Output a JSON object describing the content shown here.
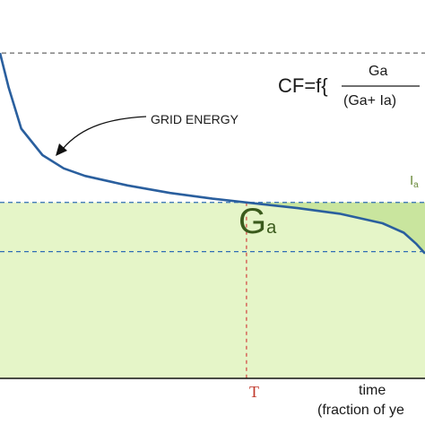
{
  "chart_data": {
    "type": "area",
    "title": "",
    "xlabel_line1": "time",
    "xlabel_line2": "(fraction of ye",
    "ylabel": "",
    "xlim": [
      0,
      1
    ],
    "ylim": [
      0,
      1
    ],
    "grid": false,
    "curve": {
      "name": "",
      "x": [
        0,
        0.02,
        0.05,
        0.1,
        0.15,
        0.2,
        0.3,
        0.4,
        0.5,
        0.58,
        0.7,
        0.8,
        0.9,
        0.95,
        0.98,
        1.0
      ],
      "y": [
        0.86,
        0.77,
        0.66,
        0.59,
        0.555,
        0.535,
        0.51,
        0.49,
        0.475,
        0.465,
        0.45,
        0.435,
        0.41,
        0.385,
        0.355,
        0.33
      ]
    },
    "reference_lines": {
      "peak_level": 0.86,
      "generation_level": 0.465,
      "ga_dashed_level": 0.335,
      "T_x": 0.58
    },
    "labels": {
      "grid_energy": "GRID ENERGY",
      "ga_big": "G",
      "ga_big_sub": "a",
      "ia": "I",
      "ia_sub": "a",
      "t_marker": "T",
      "formula_prefix": "CF=f{",
      "formula_numerator": "Ga",
      "formula_denominator": "(Ga+ Ia)"
    },
    "colors": {
      "curve": "#2a5f9e",
      "fill": "#e5f5c8",
      "fill_edge": "#c9e59e",
      "dash": "#2f6db4",
      "peak_dash": "#444444",
      "t_line": "#d03030",
      "t_label": "#c0392b",
      "ga_text": "#3a5a1c"
    }
  }
}
